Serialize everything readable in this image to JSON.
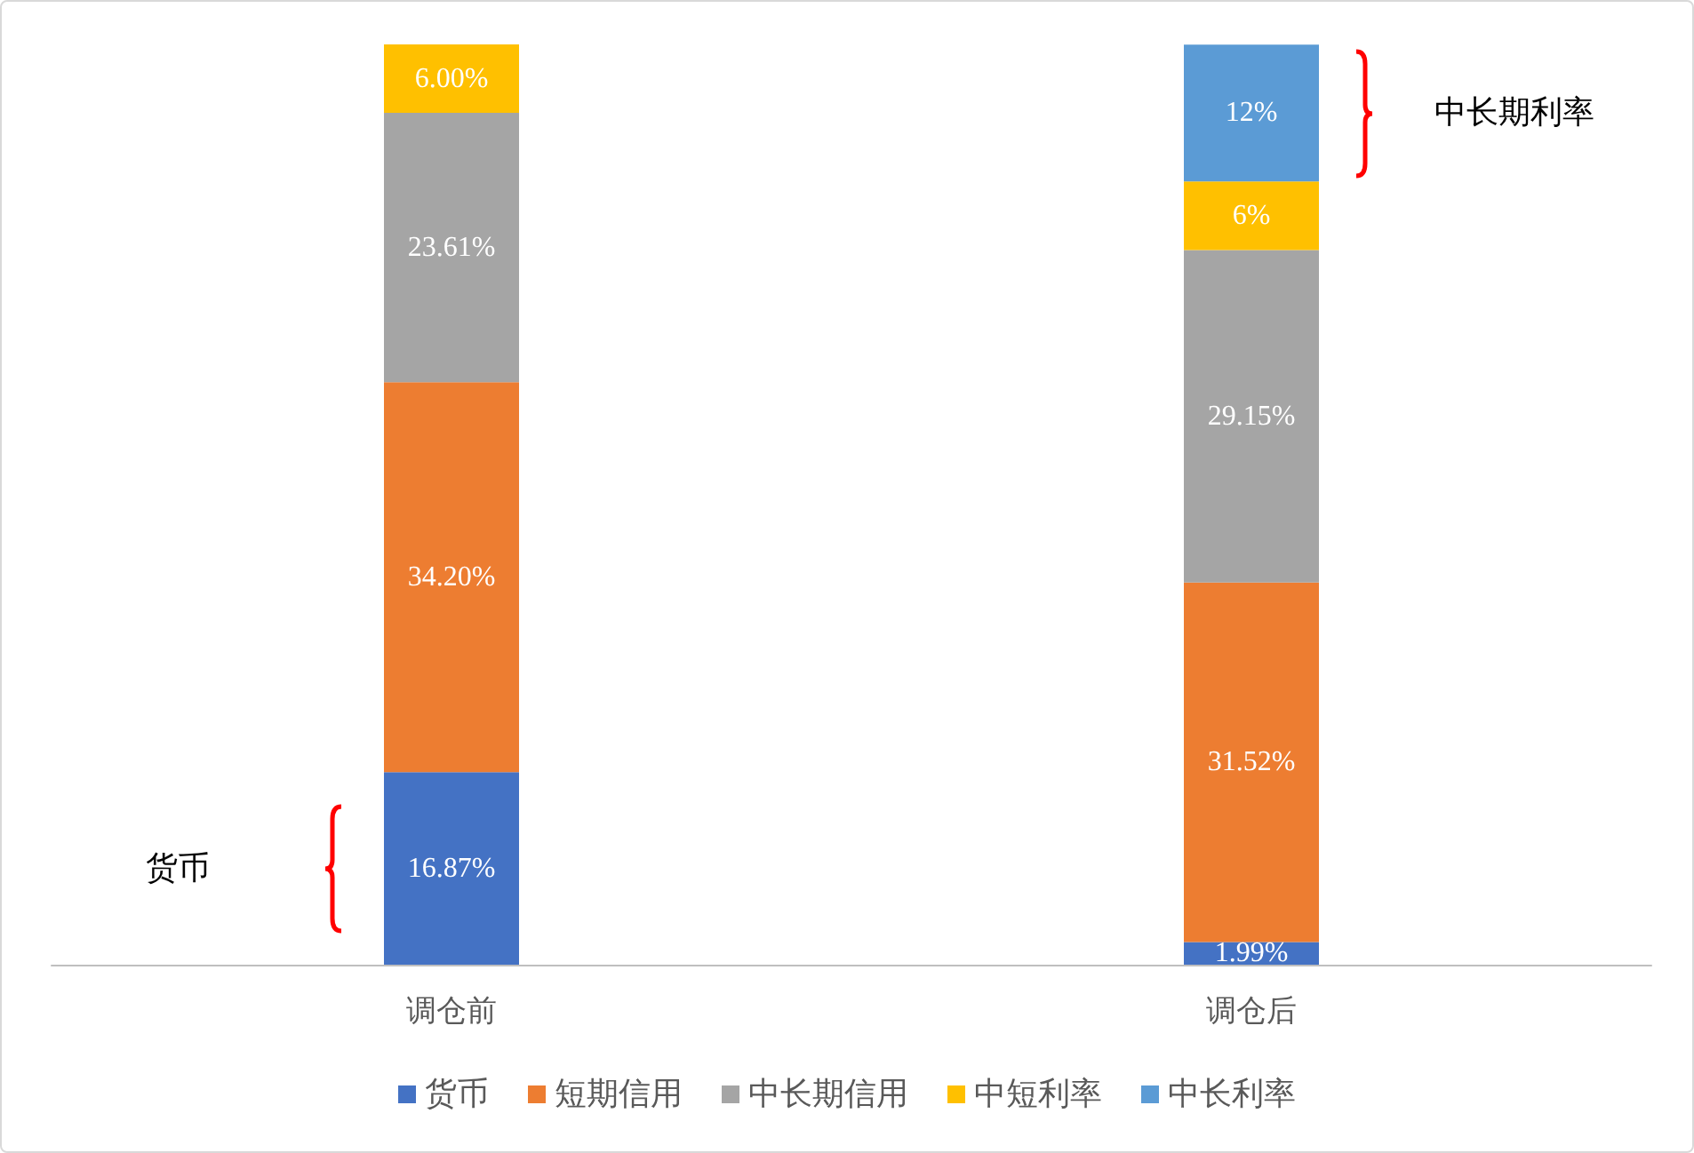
{
  "chart_data": {
    "type": "bar",
    "stacked": true,
    "categories": [
      "调仓前",
      "调仓后"
    ],
    "series": [
      {
        "name": "货币",
        "color": "#4472c4",
        "values": [
          16.87,
          1.99
        ],
        "value_labels": [
          "16.87%",
          "1.99%"
        ]
      },
      {
        "name": "短期信用",
        "color": "#ed7d31",
        "values": [
          34.2,
          31.52
        ],
        "value_labels": [
          "34.20%",
          "31.52%"
        ]
      },
      {
        "name": "中长期信用",
        "color": "#a5a5a5",
        "values": [
          23.61,
          29.15
        ],
        "value_labels": [
          "23.61%",
          "29.15%"
        ]
      },
      {
        "name": "中短利率",
        "color": "#ffc000",
        "values": [
          6.0,
          6
        ],
        "value_labels": [
          "6.00%",
          "6%"
        ]
      },
      {
        "name": "中长利率",
        "color": "#5b9bd5",
        "values": [
          null,
          12
        ],
        "value_labels": [
          null,
          "12%"
        ]
      }
    ],
    "annotations": [
      "货币",
      "中长期利率"
    ],
    "legend": "bottom"
  }
}
